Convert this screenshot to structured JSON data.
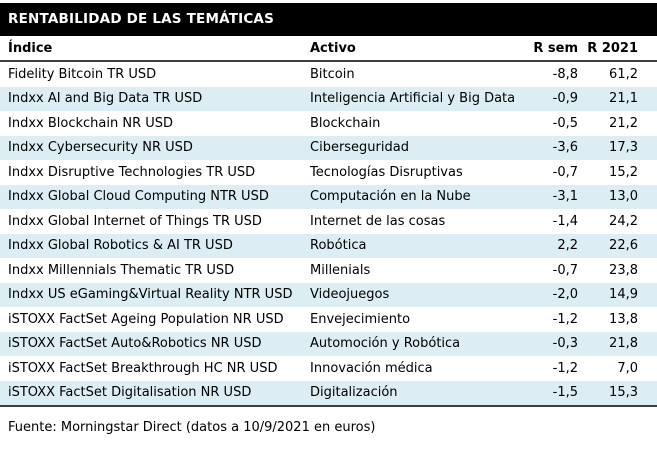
{
  "chart_data": {
    "type": "table",
    "title": "RENTABILIDAD DE LAS TEMÁTICAS",
    "columns": [
      "Índice",
      "Activo",
      "R sem",
      "R 2021"
    ],
    "rows": [
      [
        "Fidelity Bitcoin TR USD",
        "Bitcoin",
        "-8,8",
        "61,2"
      ],
      [
        "Indxx AI and Big Data TR USD",
        "Inteligencia Artificial y Big Data",
        "-0,9",
        "21,1"
      ],
      [
        "Indxx Blockchain NR USD",
        "Blockchain",
        "-0,5",
        "21,2"
      ],
      [
        "Indxx Cybersecurity NR USD",
        "Ciberseguridad",
        "-3,6",
        "17,3"
      ],
      [
        "Indxx Disruptive Technologies TR USD",
        "Tecnologías Disruptivas",
        "-0,7",
        "15,2"
      ],
      [
        "Indxx Global Cloud Computing NTR USD",
        "Computación en la Nube",
        "-3,1",
        "13,0"
      ],
      [
        "Indxx Global Internet of Things TR USD",
        "Internet de las cosas",
        "-1,4",
        "24,2"
      ],
      [
        "Indxx Global Robotics & AI TR USD",
        "Robótica",
        "2,2",
        "22,6"
      ],
      [
        "Indxx Millennials Thematic TR USD",
        "Millenials",
        "-0,7",
        "23,8"
      ],
      [
        "Indxx US eGaming&Virtual Reality NTR USD",
        "Videojuegos",
        "-2,0",
        "14,9"
      ],
      [
        "iSTOXX FactSet Ageing Population NR USD",
        "Envejecimiento",
        "-1,2",
        "13,8"
      ],
      [
        "iSTOXX FactSet Auto&Robotics NR USD",
        "Automoción y Robótica",
        "-0,3",
        "21,8"
      ],
      [
        "iSTOXX FactSet Breakthrough HC NR USD",
        "Innovación médica",
        "-1,2",
        "7,0"
      ],
      [
        "iSTOXX FactSet Digitalisation NR USD",
        "Digitalización",
        "-1,5",
        "15,3"
      ]
    ],
    "footnote": "Fuente: Morningstar Direct (datos a 10/9/2021 en euros)",
    "layout": {
      "banding": "even-rows-shaded",
      "numeric_columns_right_aligned": true
    }
  },
  "colors": {
    "title_bg": "#000000",
    "title_text": "#ffffff",
    "band": "#dcedf3",
    "rule": "#3d3d3d",
    "text": "#000000"
  }
}
